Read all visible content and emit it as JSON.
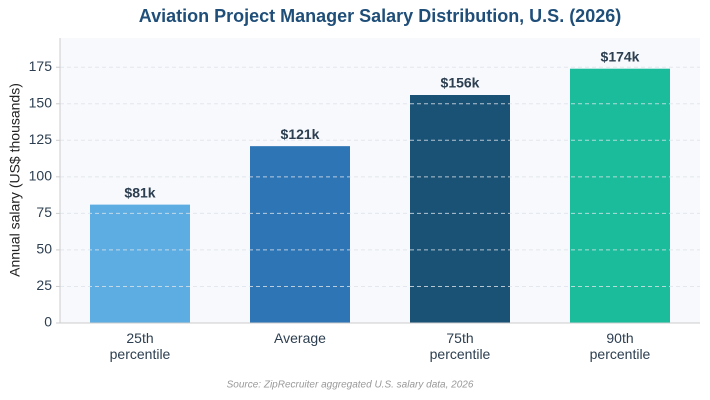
{
  "chart_data": {
    "type": "bar",
    "title": "Aviation Project Manager Salary Distribution, U.S. (2026)",
    "ylabel": "Annual salary (US$ thousands)",
    "source": "Source: ZipRecruiter aggregated U.S. salary data, 2026",
    "categories": [
      "25th percentile",
      "Average",
      "75th percentile",
      "90th percentile"
    ],
    "values": [
      81,
      121,
      156,
      174
    ],
    "value_labels": [
      "$81k",
      "$121k",
      "$156k",
      "$174k"
    ],
    "colors": [
      "#5dade2",
      "#2e75b6",
      "#1a5276",
      "#1abc9c"
    ],
    "ylim": [
      0,
      195
    ],
    "yticks": [
      0,
      25,
      50,
      75,
      100,
      125,
      150,
      175
    ],
    "grid": true
  }
}
